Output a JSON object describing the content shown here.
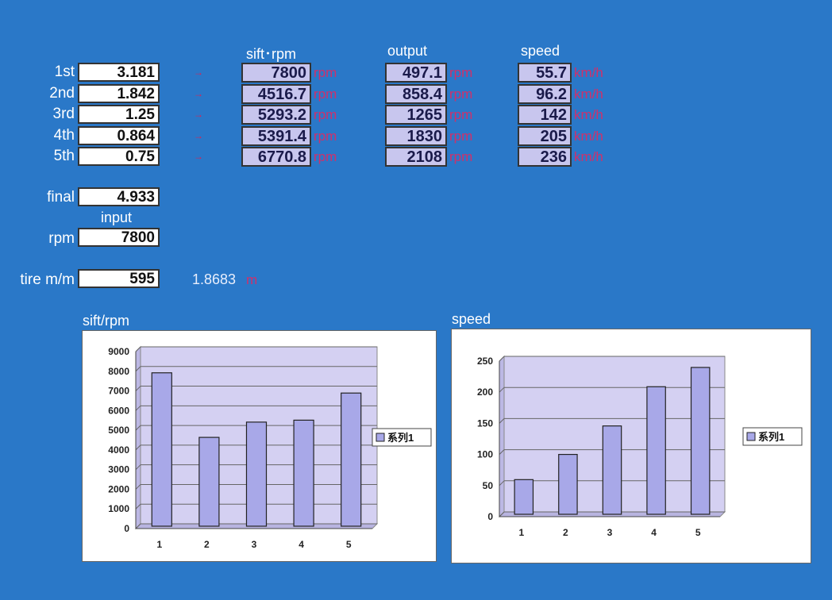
{
  "headers": {
    "shift_rpm": "sift･rpm",
    "output": "output",
    "speed": "speed"
  },
  "gears": [
    {
      "label": "1st",
      "ratio": "3.181",
      "arrow": "→",
      "shift_rpm": "7800",
      "output": "497.1",
      "speed": "55.7"
    },
    {
      "label": "2nd",
      "ratio": "1.842",
      "arrow": "→",
      "shift_rpm": "4516.7",
      "output": "858.4",
      "speed": "96.2"
    },
    {
      "label": "3rd",
      "ratio": "1.25",
      "arrow": "→",
      "shift_rpm": "5293.2",
      "output": "1265",
      "speed": "142"
    },
    {
      "label": "4th",
      "ratio": "0.864",
      "arrow": "→",
      "shift_rpm": "5391.4",
      "output": "1830",
      "speed": "205"
    },
    {
      "label": "5th",
      "ratio": "0.75",
      "arrow": "→",
      "shift_rpm": "6770.8",
      "output": "2108",
      "speed": "236"
    }
  ],
  "units": {
    "rpm": "rpm",
    "speed": "km/h",
    "m": "m"
  },
  "final": {
    "label": "final",
    "value": "4.933"
  },
  "input": {
    "header": "input",
    "label": "rpm",
    "value": "7800"
  },
  "tire": {
    "label": "tire m/m",
    "value": "595",
    "computed": "1.8683"
  },
  "colors": {
    "background": "#2a78c8",
    "bar": "#a8a8e8",
    "plot_bg": "#d4d0f2",
    "unit_text": "#d0306a"
  },
  "chart_data": [
    {
      "type": "bar",
      "title": "sift/rpm",
      "categories": [
        "1",
        "2",
        "3",
        "4",
        "5"
      ],
      "series": [
        {
          "name": "系列1",
          "values": [
            7800,
            4516.7,
            5293.2,
            5391.4,
            6770.8
          ]
        }
      ],
      "ylim": [
        0,
        9000
      ],
      "yticks": [
        0,
        1000,
        2000,
        3000,
        4000,
        5000,
        6000,
        7000,
        8000,
        9000
      ],
      "grid": true,
      "legend": "right"
    },
    {
      "type": "bar",
      "title": "speed",
      "categories": [
        "1",
        "2",
        "3",
        "4",
        "5"
      ],
      "series": [
        {
          "name": "系列1",
          "values": [
            55.7,
            96.2,
            142,
            205,
            236
          ]
        }
      ],
      "ylim": [
        0,
        250
      ],
      "yticks": [
        0,
        50,
        100,
        150,
        200,
        250
      ],
      "grid": true,
      "legend": "right"
    }
  ]
}
